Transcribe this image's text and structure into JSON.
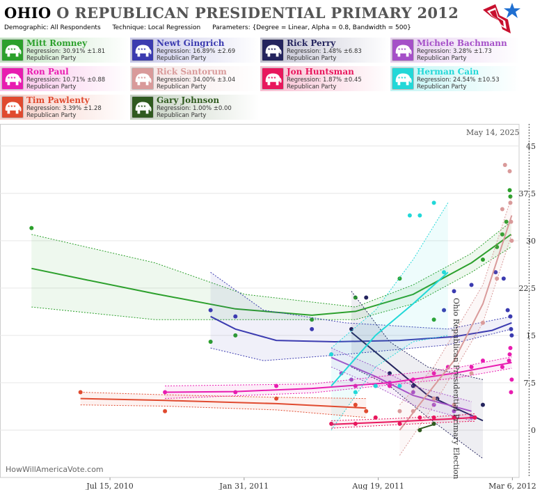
{
  "header": {
    "state": "OHIO",
    "title_rest": "O REPUBLICAN PRESIDENTIAL PRIMARY 2012",
    "demographic_label": "Demographic:",
    "demographic_value": "All Respondents",
    "technique_label": "Technique:",
    "technique_value": "Local Regression",
    "parameters_label": "Parameters:",
    "parameters_value": "{Degree = Linear, Alpha = 0.8, Bandwidth = 500}"
  },
  "legend": [
    {
      "name": "Mitt Romney",
      "regression": "Regression: 30.91% ±1.81",
      "party": "Republican Party",
      "color": "#2ca02c"
    },
    {
      "name": "Newt Gingrich",
      "regression": "Regression: 16.89% ±2.69",
      "party": "Republican Party",
      "color": "#3b3bb0"
    },
    {
      "name": "Rick Perry",
      "regression": "Regression: 1.48% ±6.83",
      "party": "Republican Party",
      "color": "#24245e"
    },
    {
      "name": "Michele Bachmann",
      "regression": "Regression: 3.28% ±1.73",
      "party": "Republican Party",
      "color": "#a550c8"
    },
    {
      "name": "Ron Paul",
      "regression": "Regression: 10.71% ±0.88",
      "party": "Republican Party",
      "color": "#e81cb0"
    },
    {
      "name": "Rick Santorum",
      "regression": "Regression: 34.00% ±3.04",
      "party": "Republican Party",
      "color": "#d99a9a"
    },
    {
      "name": "Jon Huntsman",
      "regression": "Regression: 1.87% ±0.45",
      "party": "Republican Party",
      "color": "#e8175d"
    },
    {
      "name": "Herman Cain",
      "regression": "Regression: 24.54% ±10.53",
      "party": "Republican Party",
      "color": "#22d8d8"
    },
    {
      "name": "Tim Pawlenty",
      "regression": "Regression: 3.39% ±1.28",
      "party": "Republican Party",
      "color": "#e04a2f"
    },
    {
      "name": "Gary Johnson",
      "regression": "Regression: 1.00% ±0.00",
      "party": "Republican Party",
      "color": "#2f5a1f"
    }
  ],
  "chart_data": {
    "type": "scatter",
    "title": "",
    "xlabel": "",
    "ylabel": "",
    "ylim": [
      -7.5,
      48.5
    ],
    "xlim": [
      "2010-02-01",
      "2012-03-16"
    ],
    "yticks": [
      "45",
      "37.5",
      "30",
      "22.5",
      "15",
      "7.5",
      "0"
    ],
    "xticks": [
      "Jul 15, 2010",
      "Jan 31, 2011",
      "Aug 19, 2011",
      "Mar 6, 2012"
    ],
    "today_label": "May 14, 2025",
    "event_label": "Ohio Republican Presidential Primary Election",
    "event_date": "2012-03-06",
    "watermark": "HowWillAmericaVote.com",
    "grid": true,
    "series": [
      {
        "name": "Mitt Romney",
        "color": "#2ca02c",
        "points": [
          [
            "2010-03-20",
            32
          ],
          [
            "2010-12-12",
            14
          ],
          [
            "2011-01-18",
            15
          ],
          [
            "2011-05-12",
            17.5
          ],
          [
            "2011-07-16",
            21
          ],
          [
            "2011-09-20",
            24
          ],
          [
            "2011-11-10",
            17.5
          ],
          [
            "2012-01-22",
            27
          ],
          [
            "2012-02-12",
            29
          ],
          [
            "2012-02-20",
            31
          ],
          [
            "2012-02-26",
            33
          ],
          [
            "2012-03-02",
            38
          ],
          [
            "2012-03-03",
            37
          ]
        ],
        "fit": [
          [
            "2010-03-20",
            25.6
          ],
          [
            "2010-06-10",
            23.8
          ],
          [
            "2010-09-20",
            21.6
          ],
          [
            "2011-01-18",
            19.2
          ],
          [
            "2011-05-12",
            18.2
          ],
          [
            "2011-07-16",
            18.8
          ],
          [
            "2011-10-10",
            21.5
          ],
          [
            "2012-01-05",
            26.5
          ],
          [
            "2012-03-04",
            31
          ]
        ],
        "upper": [
          [
            "2010-03-20",
            31
          ],
          [
            "2010-09-20",
            26.5
          ],
          [
            "2011-02-01",
            21.5
          ],
          [
            "2011-07-16",
            19.5
          ],
          [
            "2011-10-10",
            23
          ],
          [
            "2012-01-05",
            28
          ],
          [
            "2012-03-04",
            33
          ]
        ],
        "lower": [
          [
            "2010-03-20",
            19.5
          ],
          [
            "2010-09-20",
            17.5
          ],
          [
            "2011-02-01",
            17.5
          ],
          [
            "2011-07-16",
            17.5
          ],
          [
            "2011-10-10",
            20
          ],
          [
            "2012-01-05",
            25
          ],
          [
            "2012-03-04",
            29
          ]
        ]
      },
      {
        "name": "Newt Gingrich",
        "color": "#3b3bb0",
        "points": [
          [
            "2010-12-12",
            19
          ],
          [
            "2011-01-18",
            18
          ],
          [
            "2011-05-12",
            16
          ],
          [
            "2011-11-25",
            19
          ],
          [
            "2011-12-10",
            22
          ],
          [
            "2012-01-05",
            23
          ],
          [
            "2012-02-10",
            25
          ],
          [
            "2012-02-22",
            24
          ],
          [
            "2012-02-28",
            19
          ],
          [
            "2012-03-03",
            18
          ],
          [
            "2012-03-04",
            16
          ],
          [
            "2012-03-05",
            15
          ]
        ],
        "fit": [
          [
            "2010-12-12",
            18
          ],
          [
            "2011-01-18",
            16
          ],
          [
            "2011-03-20",
            14.2
          ],
          [
            "2011-06-15",
            14
          ],
          [
            "2011-09-20",
            14.2
          ],
          [
            "2011-12-10",
            14.8
          ],
          [
            "2012-02-05",
            15.8
          ],
          [
            "2012-03-05",
            17
          ]
        ],
        "upper": [
          [
            "2010-12-12",
            25
          ],
          [
            "2011-03-01",
            19
          ],
          [
            "2011-07-01",
            17
          ],
          [
            "2011-12-01",
            16
          ],
          [
            "2012-03-05",
            18
          ]
        ],
        "lower": [
          [
            "2010-12-12",
            13
          ],
          [
            "2011-03-01",
            11
          ],
          [
            "2011-07-01",
            12
          ],
          [
            "2011-12-01",
            13.5
          ],
          [
            "2012-03-05",
            16
          ]
        ]
      },
      {
        "name": "Rick Perry",
        "color": "#24245e",
        "points": [
          [
            "2011-07-10",
            16
          ],
          [
            "2011-08-01",
            21
          ],
          [
            "2011-09-05",
            9
          ],
          [
            "2011-10-10",
            7
          ],
          [
            "2011-11-15",
            5
          ],
          [
            "2011-12-10",
            2
          ],
          [
            "2012-01-10",
            2
          ],
          [
            "2012-01-22",
            4
          ]
        ],
        "fit": [
          [
            "2011-07-10",
            15.5
          ],
          [
            "2011-09-05",
            10.5
          ],
          [
            "2011-11-01",
            5.5
          ],
          [
            "2012-01-22",
            1.5
          ]
        ],
        "upper": [
          [
            "2011-07-10",
            22
          ],
          [
            "2011-09-05",
            14
          ],
          [
            "2011-11-01",
            10
          ],
          [
            "2012-01-22",
            8
          ]
        ],
        "lower": [
          [
            "2011-07-10",
            10
          ],
          [
            "2011-09-05",
            7
          ],
          [
            "2011-11-01",
            2
          ],
          [
            "2012-01-22",
            -4.5
          ]
        ]
      },
      {
        "name": "Michele Bachmann",
        "color": "#a550c8",
        "points": [
          [
            "2011-06-10",
            12
          ],
          [
            "2011-06-25",
            9
          ],
          [
            "2011-07-10",
            8
          ],
          [
            "2011-08-15",
            7
          ],
          [
            "2011-09-05",
            7.5
          ],
          [
            "2011-10-10",
            6
          ],
          [
            "2011-11-10",
            4
          ],
          [
            "2011-12-10",
            3
          ],
          [
            "2012-01-05",
            2
          ]
        ],
        "fit": [
          [
            "2011-06-10",
            11.5
          ],
          [
            "2011-08-15",
            8.5
          ],
          [
            "2011-10-10",
            5.5
          ],
          [
            "2012-01-05",
            3
          ]
        ],
        "upper": [
          [
            "2011-06-10",
            13
          ],
          [
            "2011-08-15",
            10
          ],
          [
            "2011-10-10",
            7
          ],
          [
            "2012-01-05",
            4.5
          ]
        ],
        "lower": [
          [
            "2011-06-10",
            10
          ],
          [
            "2011-08-15",
            7
          ],
          [
            "2011-10-10",
            4
          ],
          [
            "2012-01-05",
            1.5
          ]
        ]
      },
      {
        "name": "Ron Paul",
        "color": "#e81cb0",
        "points": [
          [
            "2010-10-05",
            6
          ],
          [
            "2011-01-18",
            6
          ],
          [
            "2011-03-20",
            7
          ],
          [
            "2011-07-16",
            7
          ],
          [
            "2011-09-05",
            7
          ],
          [
            "2011-10-10",
            8
          ],
          [
            "2011-11-10",
            9
          ],
          [
            "2011-12-01",
            10
          ],
          [
            "2012-01-05",
            10
          ],
          [
            "2012-01-22",
            11
          ],
          [
            "2012-02-20",
            10
          ],
          [
            "2012-03-01",
            11
          ],
          [
            "2012-03-02",
            12
          ],
          [
            "2012-03-03",
            13
          ],
          [
            "2012-03-04",
            6
          ],
          [
            "2012-03-05",
            8
          ]
        ],
        "fit": [
          [
            "2010-10-05",
            6
          ],
          [
            "2011-01-18",
            6.1
          ],
          [
            "2011-05-12",
            6.6
          ],
          [
            "2011-09-05",
            7.5
          ],
          [
            "2011-12-10",
            9
          ],
          [
            "2012-03-05",
            10.7
          ]
        ],
        "upper": [
          [
            "2010-10-05",
            7
          ],
          [
            "2011-05-12",
            7.3
          ],
          [
            "2011-12-10",
            9.8
          ],
          [
            "2012-03-05",
            11.6
          ]
        ],
        "lower": [
          [
            "2010-10-05",
            5
          ],
          [
            "2011-05-12",
            5.9
          ],
          [
            "2011-12-10",
            8.2
          ],
          [
            "2012-03-05",
            9.8
          ]
        ]
      },
      {
        "name": "Rick Santorum",
        "color": "#d99a9a",
        "points": [
          [
            "2011-08-15",
            2
          ],
          [
            "2011-09-20",
            3
          ],
          [
            "2011-10-10",
            3
          ],
          [
            "2011-11-10",
            5
          ],
          [
            "2011-12-10",
            4
          ],
          [
            "2012-01-05",
            9
          ],
          [
            "2012-01-22",
            17
          ],
          [
            "2012-02-12",
            24
          ],
          [
            "2012-02-20",
            35
          ],
          [
            "2012-02-24",
            42
          ],
          [
            "2012-03-02",
            41
          ],
          [
            "2012-03-03",
            36
          ],
          [
            "2012-03-04",
            33
          ],
          [
            "2012-03-05",
            30
          ]
        ],
        "fit": [
          [
            "2011-09-20",
            0
          ],
          [
            "2011-11-10",
            7
          ],
          [
            "2011-12-10",
            11
          ],
          [
            "2012-01-22",
            20
          ],
          [
            "2012-03-05",
            34
          ]
        ],
        "upper": [
          [
            "2011-09-20",
            4
          ],
          [
            "2011-11-10",
            10
          ],
          [
            "2012-01-22",
            23
          ],
          [
            "2012-03-05",
            37
          ]
        ],
        "lower": [
          [
            "2011-09-20",
            -4
          ],
          [
            "2011-11-10",
            4
          ],
          [
            "2012-01-22",
            17
          ],
          [
            "2012-03-05",
            31
          ]
        ]
      },
      {
        "name": "Jon Huntsman",
        "color": "#e8175d",
        "points": [
          [
            "2011-06-10",
            1
          ],
          [
            "2011-07-16",
            1
          ],
          [
            "2011-08-15",
            2
          ],
          [
            "2011-09-20",
            1
          ],
          [
            "2011-10-20",
            2
          ],
          [
            "2011-11-10",
            2
          ],
          [
            "2011-12-10",
            2
          ],
          [
            "2012-01-10",
            2
          ]
        ],
        "fit": [
          [
            "2011-06-10",
            0.9
          ],
          [
            "2011-09-05",
            1.3
          ],
          [
            "2011-12-10",
            1.8
          ],
          [
            "2012-01-10",
            2
          ]
        ],
        "upper": [
          [
            "2011-06-10",
            1.5
          ],
          [
            "2011-09-05",
            1.8
          ],
          [
            "2011-12-10",
            2.3
          ],
          [
            "2012-01-10",
            2.6
          ]
        ],
        "lower": [
          [
            "2011-06-10",
            0.3
          ],
          [
            "2011-09-05",
            0.8
          ],
          [
            "2011-12-10",
            1.3
          ],
          [
            "2012-01-10",
            1.4
          ]
        ]
      },
      {
        "name": "Herman Cain",
        "color": "#22d8d8",
        "points": [
          [
            "2011-06-10",
            12
          ],
          [
            "2011-07-16",
            6
          ],
          [
            "2011-08-15",
            7
          ],
          [
            "2011-09-20",
            7
          ],
          [
            "2011-10-05",
            34
          ],
          [
            "2011-10-20",
            34
          ],
          [
            "2011-11-10",
            36
          ],
          [
            "2011-11-25",
            25
          ]
        ],
        "fit": [
          [
            "2011-06-10",
            7
          ],
          [
            "2011-08-15",
            15
          ],
          [
            "2011-10-10",
            20
          ],
          [
            "2011-12-01",
            25
          ]
        ],
        "upper": [
          [
            "2011-06-10",
            13
          ],
          [
            "2011-08-15",
            19
          ],
          [
            "2011-10-10",
            27
          ],
          [
            "2011-12-01",
            36
          ]
        ],
        "lower": [
          [
            "2011-06-10",
            0
          ],
          [
            "2011-08-15",
            10
          ],
          [
            "2011-10-10",
            14
          ],
          [
            "2011-12-01",
            15
          ]
        ]
      },
      {
        "name": "Tim Pawlenty",
        "color": "#e04a2f",
        "points": [
          [
            "2010-06-01",
            6
          ],
          [
            "2010-10-05",
            3
          ],
          [
            "2011-03-20",
            5
          ],
          [
            "2011-07-16",
            4
          ],
          [
            "2011-08-01",
            3
          ]
        ],
        "fit": [
          [
            "2010-06-01",
            5
          ],
          [
            "2010-10-05",
            4.7
          ],
          [
            "2011-03-20",
            4.2
          ],
          [
            "2011-08-01",
            3.5
          ]
        ],
        "upper": [
          [
            "2010-06-01",
            6
          ],
          [
            "2010-10-05",
            5.6
          ],
          [
            "2011-03-20",
            5.2
          ],
          [
            "2011-08-01",
            5
          ]
        ],
        "lower": [
          [
            "2010-06-01",
            4
          ],
          [
            "2010-10-05",
            3.8
          ],
          [
            "2011-03-20",
            3.2
          ],
          [
            "2011-08-01",
            2
          ]
        ]
      },
      {
        "name": "Gary Johnson",
        "color": "#2f5a1f",
        "points": [
          [
            "2011-10-20",
            0
          ],
          [
            "2011-11-10",
            1
          ]
        ],
        "fit": [
          [
            "2011-10-20",
            0.2
          ],
          [
            "2011-11-10",
            0.9
          ]
        ],
        "upper": [],
        "lower": []
      }
    ]
  }
}
